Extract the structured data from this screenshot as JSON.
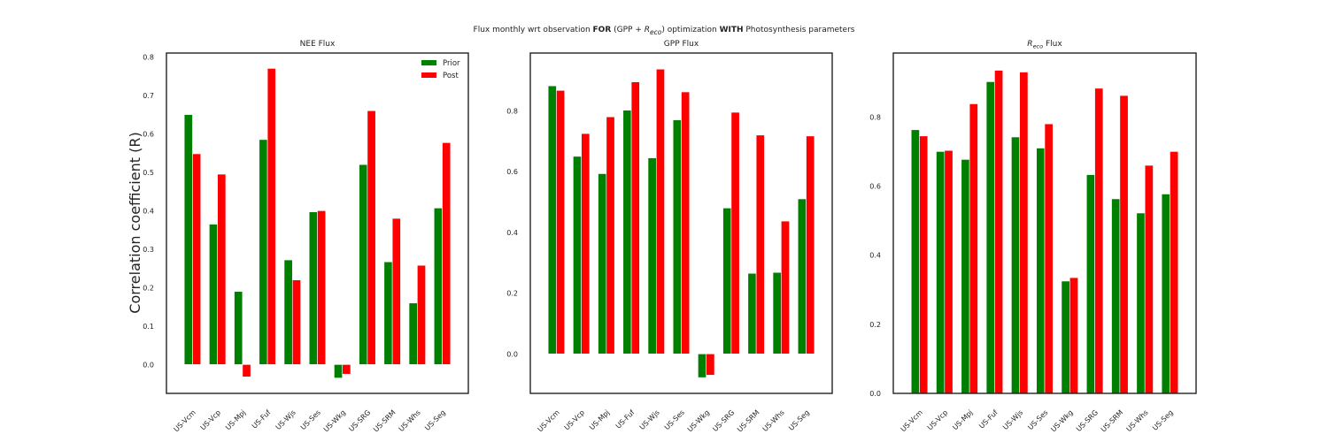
{
  "figure": {
    "suptitle": {
      "part1": "Flux monthly wrt observation ",
      "for_word": "FOR",
      "part2": " (GPP + ",
      "reco_base": "R",
      "reco_sub": "eco",
      "part3": ") optimization ",
      "with_word": "WITH",
      "part4": " Photosynthesis parameters"
    },
    "ylabel": "Correlation coefficient (R)"
  },
  "colors": {
    "prior": "#008000",
    "post": "#ff0000"
  },
  "chart_data": [
    {
      "type": "bar",
      "title": "NEE Flux",
      "categories": [
        "US-Vcm",
        "US-Vcp",
        "US-Mpj",
        "US-Fuf",
        "US-Wjs",
        "US-Ses",
        "US-Wkg",
        "US-SRG",
        "US-SRM",
        "US-Whs",
        "US-Seg"
      ],
      "series": [
        {
          "name": "Prior",
          "values": [
            0.65,
            0.365,
            0.19,
            0.585,
            0.272,
            0.397,
            -0.035,
            0.52,
            0.267,
            0.16,
            0.407
          ]
        },
        {
          "name": "Post",
          "values": [
            0.548,
            0.495,
            -0.032,
            0.77,
            0.22,
            0.4,
            -0.025,
            0.66,
            0.38,
            0.258,
            0.577
          ]
        }
      ],
      "ylim": [
        -0.075,
        0.81
      ],
      "yticks": [
        "0.0",
        "0.1",
        "0.2",
        "0.3",
        "0.4",
        "0.5",
        "0.6",
        "0.7",
        "0.8"
      ],
      "ylabel": "Correlation coefficient (R)",
      "legend": {
        "location": "top-right",
        "entries": [
          "Prior",
          "Post"
        ]
      }
    },
    {
      "type": "bar",
      "title": "GPP Flux",
      "categories": [
        "US-Vcm",
        "US-Vcp",
        "US-Mpj",
        "US-Fuf",
        "US-Wjs",
        "US-Ses",
        "US-Wkg",
        "US-SRG",
        "US-SRM",
        "US-Whs",
        "US-Seg"
      ],
      "series": [
        {
          "name": "Prior",
          "values": [
            0.882,
            0.65,
            0.593,
            0.802,
            0.645,
            0.77,
            -0.078,
            0.48,
            0.265,
            0.268,
            0.51
          ]
        },
        {
          "name": "Post",
          "values": [
            0.867,
            0.725,
            0.78,
            0.895,
            0.937,
            0.862,
            -0.07,
            0.795,
            0.72,
            0.437,
            0.717
          ]
        }
      ],
      "ylim": [
        -0.13,
        0.99
      ],
      "yticks": [
        "0.0",
        "0.2",
        "0.4",
        "0.6",
        "0.8"
      ]
    },
    {
      "type": "bar",
      "title_base": "R",
      "title_sub": "eco",
      "title_rest": " Flux",
      "categories": [
        "US-Vcm",
        "US-Vcp",
        "US-Mpj",
        "US-Fuf",
        "US-Wjs",
        "US-Ses",
        "US-Wkg",
        "US-SRG",
        "US-SRM",
        "US-Whs",
        "US-Seg"
      ],
      "series": [
        {
          "name": "Prior",
          "values": [
            0.763,
            0.7,
            0.677,
            0.902,
            0.742,
            0.71,
            0.325,
            0.633,
            0.563,
            0.522,
            0.577
          ]
        },
        {
          "name": "Post",
          "values": [
            0.745,
            0.703,
            0.838,
            0.935,
            0.93,
            0.78,
            0.335,
            0.883,
            0.862,
            0.66,
            0.7
          ]
        }
      ],
      "ylim": [
        0.0,
        0.985
      ],
      "yticks": [
        "0.0",
        "0.2",
        "0.4",
        "0.6",
        "0.8"
      ]
    }
  ]
}
